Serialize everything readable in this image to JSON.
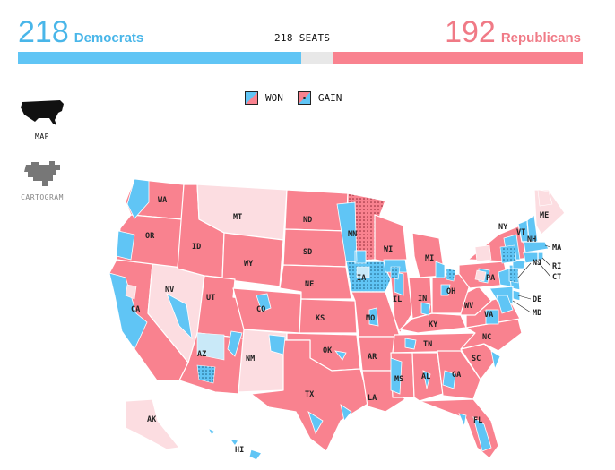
{
  "tally": {
    "dem_seats": "218",
    "dem_label": "Democrats",
    "rep_seats": "192",
    "rep_label": "Republicans",
    "majority_label": "218 SEATS",
    "total_seats": 435
  },
  "legend": {
    "won_label": "WON",
    "gain_label": "GAIN"
  },
  "view": {
    "map_label": "MAP",
    "cartogram_label": "CARTOGRAM",
    "selected": "MAP"
  },
  "colors": {
    "dem": "#60c5f5",
    "rep": "#f9828f",
    "rep_pending": "#fcdde1",
    "dem_pending": "#c9e9f8",
    "dem_text": "#49b6e9",
    "rep_text": "#f07a86",
    "border": "#ffffff"
  },
  "states": [
    "WA",
    "OR",
    "CA",
    "NV",
    "ID",
    "MT",
    "WY",
    "UT",
    "AZ",
    "CO",
    "NM",
    "ND",
    "SD",
    "NE",
    "KS",
    "OK",
    "TX",
    "MN",
    "IA",
    "MO",
    "AR",
    "LA",
    "WI",
    "IL",
    "MI",
    "IN",
    "KY",
    "TN",
    "MS",
    "AL",
    "GA",
    "FL",
    "SC",
    "NC",
    "VA",
    "WV",
    "OH",
    "PA",
    "NY",
    "VT",
    "NH",
    "ME",
    "MA",
    "RI",
    "CT",
    "NJ",
    "DE",
    "MD",
    "AK",
    "HI"
  ]
}
